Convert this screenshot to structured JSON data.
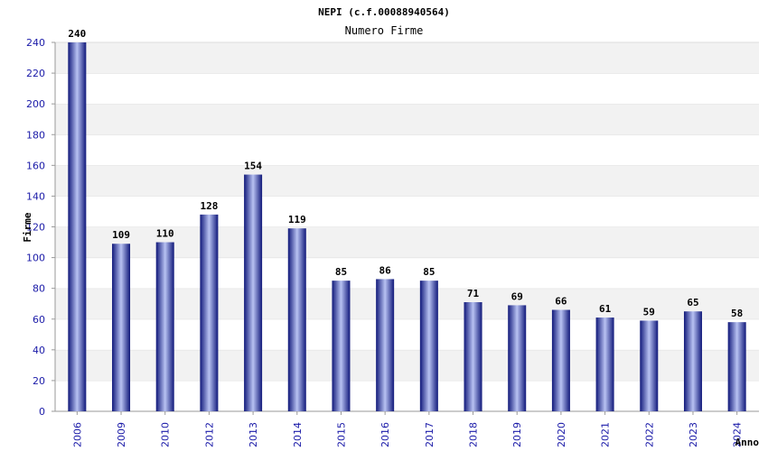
{
  "chart_data": {
    "type": "bar",
    "title": "NEPI (c.f.00088940564)",
    "subtitle": "Numero Firme",
    "xlabel": "Anno",
    "ylabel": "Firme",
    "categories": [
      "2006",
      "2009",
      "2010",
      "2012",
      "2013",
      "2014",
      "2015",
      "2016",
      "2017",
      "2018",
      "2019",
      "2020",
      "2021",
      "2022",
      "2023",
      "2024"
    ],
    "values": [
      240,
      109,
      110,
      128,
      154,
      119,
      85,
      86,
      85,
      71,
      69,
      66,
      61,
      59,
      65,
      58
    ],
    "ylim": [
      0,
      240
    ],
    "yticks": [
      0,
      20,
      40,
      60,
      80,
      100,
      120,
      140,
      160,
      180,
      200,
      220,
      240
    ],
    "grid": "horizontal bands",
    "colors": {
      "bar_dark": "#10187a",
      "bar_light": "#b8c2f2",
      "band_alt": "#f2f2f2",
      "tick_text": "#1a1aa8",
      "axis": "#9a9a9a"
    }
  }
}
